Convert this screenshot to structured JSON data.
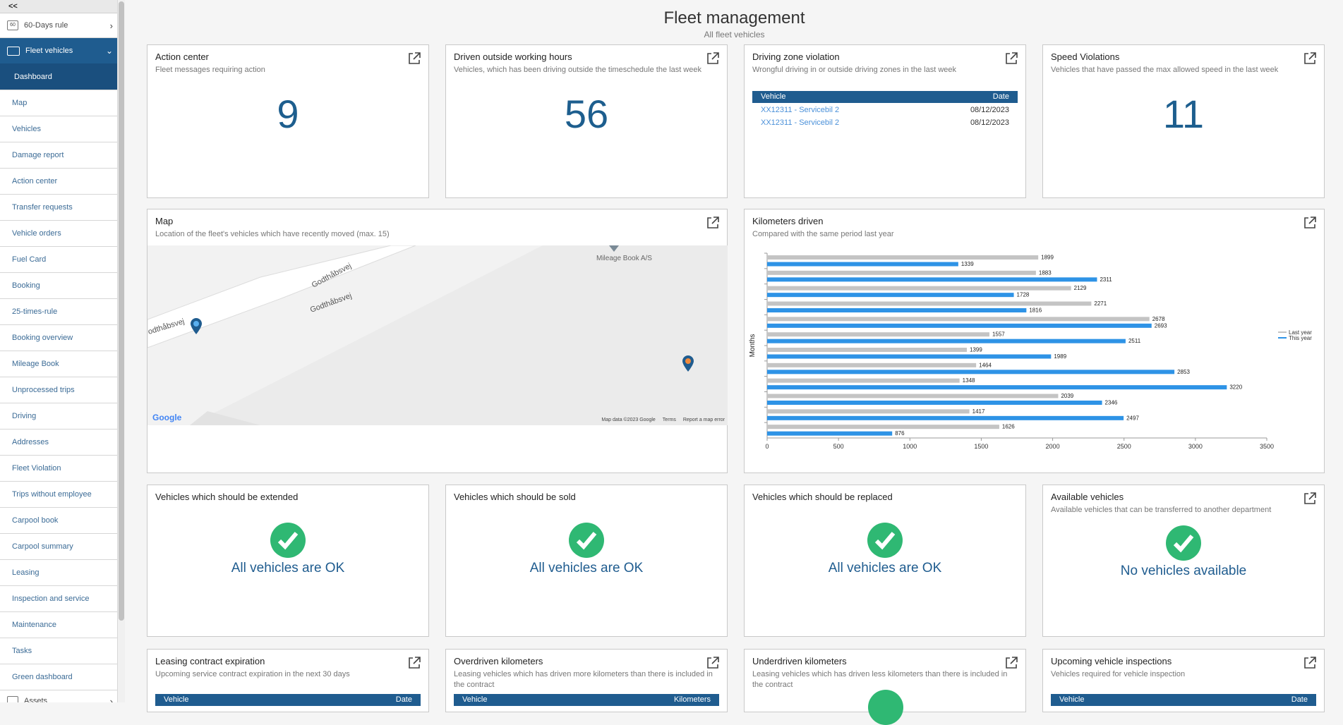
{
  "sidebar": {
    "collapse_label": "<<",
    "top_item": {
      "label": "60-Days rule",
      "icon": "calendar-icon"
    },
    "fleet": {
      "label": "Fleet vehicles",
      "icon": "car-icon"
    },
    "active": "Dashboard",
    "items": [
      "Map",
      "Vehicles",
      "Damage report",
      "Action center",
      "Transfer requests",
      "Vehicle orders",
      "Fuel Card",
      "Booking",
      "25-times-rule",
      "Booking overview",
      "Mileage Book",
      "Unprocessed trips",
      "Driving",
      "Addresses",
      "Fleet Violation",
      "Trips without employee",
      "Carpool book",
      "Carpool summary",
      "Leasing",
      "Inspection and service",
      "Maintenance",
      "Tasks",
      "Green dashboard"
    ],
    "bottom_item": {
      "label": "Assets",
      "icon": "assets-icon"
    }
  },
  "header": {
    "title": "Fleet management",
    "subtitle": "All fleet vehicles"
  },
  "cards": {
    "action_center": {
      "title": "Action center",
      "sub": "Fleet messages requiring action",
      "value": "9"
    },
    "outside_hours": {
      "title": "Driven outside working hours",
      "sub": "Vehicles, which has been driving outside the timeschedule the last week",
      "value": "56"
    },
    "zone": {
      "title": "Driving zone violation",
      "sub": "Wrongful driving in or outside driving zones in the last week",
      "col_vehicle": "Vehicle",
      "col_date": "Date",
      "rows": [
        {
          "vehicle": "XX12311 - Servicebil 2",
          "date": "08/12/2023"
        },
        {
          "vehicle": "XX12311 - Servicebil 2",
          "date": "08/12/2023"
        }
      ]
    },
    "speed": {
      "title": "Speed Violations",
      "sub": "Vehicles that have passed the max allowed speed in the last week",
      "value": "11"
    },
    "map": {
      "title": "Map",
      "sub": "Location of the fleet's vehicles which have recently moved (max. 15)",
      "road1": "Godthåbsvej",
      "road2": "Godthåbsvej",
      "road3": "odthåbsvej",
      "place": "Mileage Book A/S",
      "logo": "Google",
      "footer": [
        "Map data ©2023 Google",
        "Terms",
        "Report a map error"
      ]
    },
    "km": {
      "title": "Kilometers driven",
      "sub": "Compared with the same period last year"
    },
    "extended": {
      "title": "Vehicles which should be extended",
      "text": "All vehicles are OK"
    },
    "sold": {
      "title": "Vehicles which should be sold",
      "text": "All vehicles are OK"
    },
    "replaced": {
      "title": "Vehicles which should be replaced",
      "text": "All vehicles are OK"
    },
    "available": {
      "title": "Available vehicles",
      "sub": "Available vehicles that can be transferred to another department",
      "text": "No vehicles available"
    },
    "leasing": {
      "title": "Leasing contract expiration",
      "sub": "Upcoming service contract expiration in the next 30 days",
      "col1": "Vehicle",
      "col2": "Date"
    },
    "overdriven": {
      "title": "Overdriven kilometers",
      "sub": "Leasing vehicles which has driven more kilometers than there is included in the contract",
      "col1": "Vehicle",
      "col2": "Kilometers"
    },
    "underdriven": {
      "title": "Underdriven kilometers",
      "sub": "Leasing vehicles which has driven less kilometers than there is included in the contract"
    },
    "inspections": {
      "title": "Upcoming vehicle inspections",
      "sub": "Vehicles required for vehicle inspection",
      "col1": "Vehicle",
      "col2": "Date"
    }
  },
  "colors": {
    "accent": "#1f5c8f",
    "ok_green": "#2fb873",
    "this_year": "#2e93e6",
    "last_year": "#c4c4c4"
  },
  "chart_data": {
    "type": "bar",
    "orientation": "horizontal",
    "ylabel": "Months",
    "xlim": [
      0,
      3500
    ],
    "xticks": [
      0,
      500,
      1000,
      1500,
      2000,
      2500,
      3000,
      3500
    ],
    "legend_position": "right",
    "series": [
      {
        "name": "Last year",
        "color": "#c4c4c4",
        "values": [
          1899,
          1883,
          2129,
          2271,
          2678,
          1557,
          1399,
          1464,
          1348,
          2039,
          1417,
          1626
        ]
      },
      {
        "name": "This year",
        "color": "#2e93e6",
        "values": [
          1339,
          2311,
          1728,
          1816,
          2693,
          2511,
          1989,
          2853,
          3220,
          2346,
          2497,
          876
        ]
      }
    ]
  }
}
